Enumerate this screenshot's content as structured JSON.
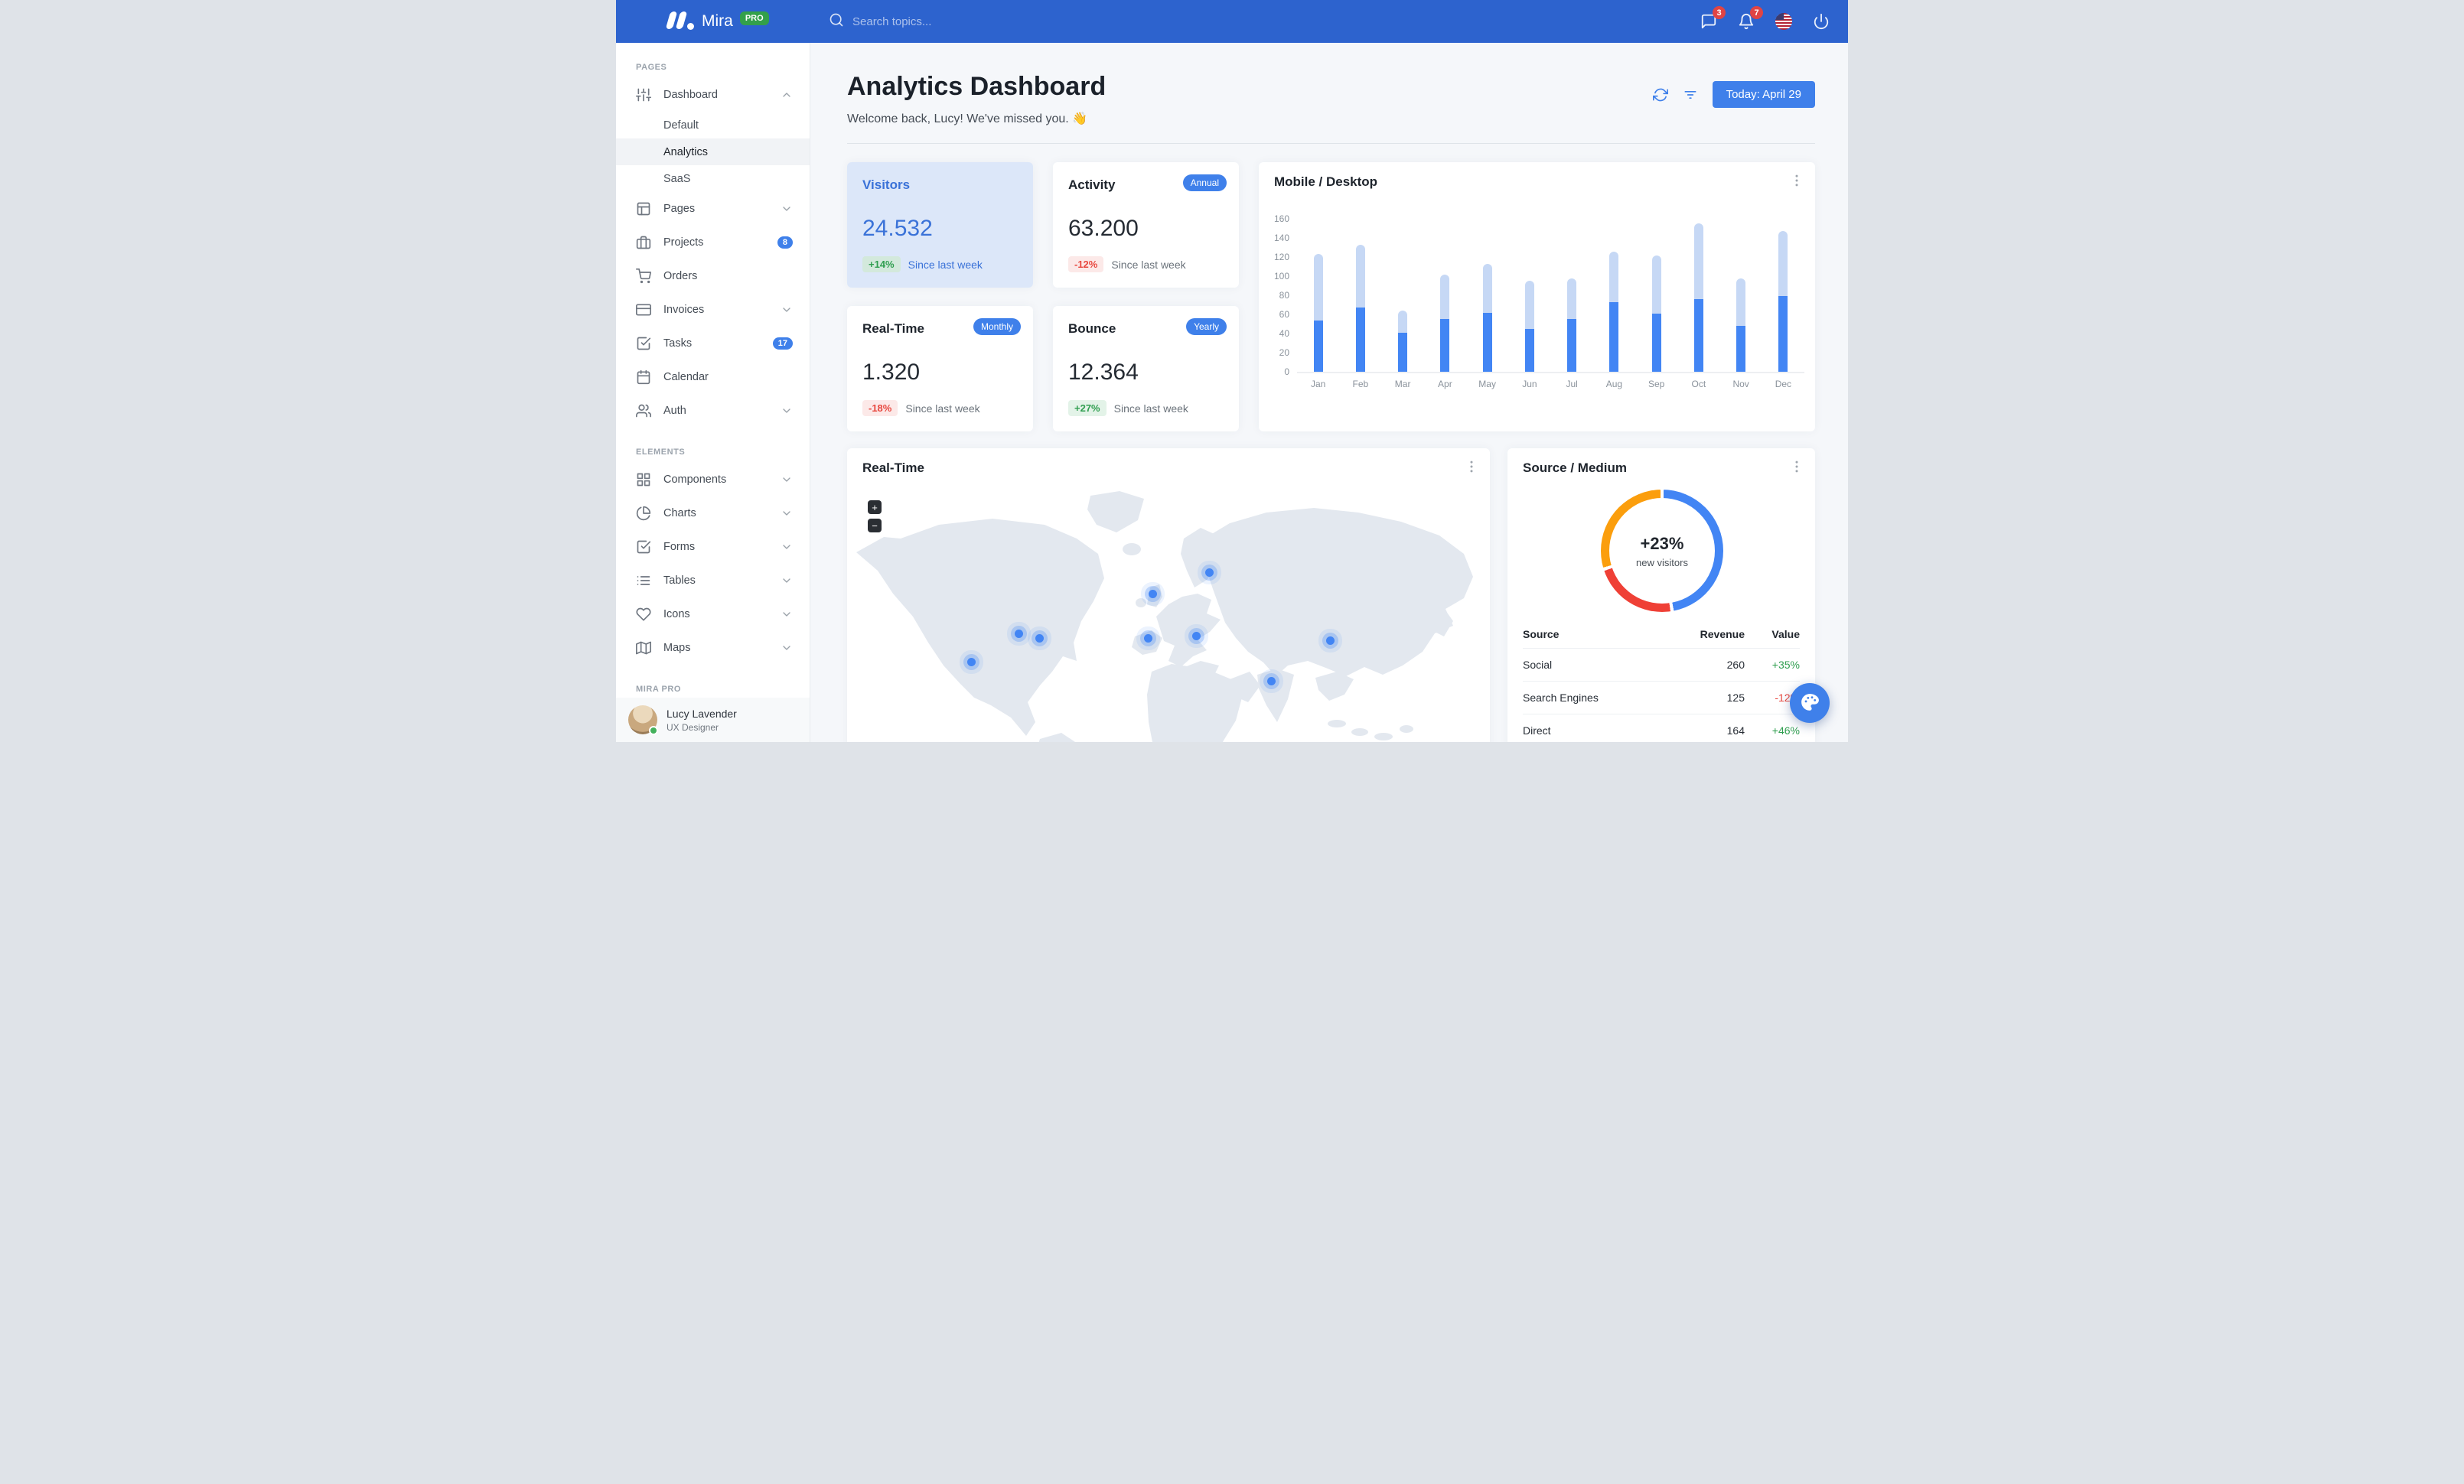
{
  "navbar": {
    "brand": "Mira",
    "brand_badge": "PRO",
    "search_placeholder": "Search topics...",
    "messages_badge": "3",
    "notifications_badge": "7"
  },
  "sidebar": {
    "sections": [
      {
        "heading": "PAGES",
        "items": [
          {
            "label": "Dashboard",
            "icon": "sliders",
            "state": "expanded",
            "children": [
              {
                "label": "Default"
              },
              {
                "label": "Analytics",
                "active": true
              },
              {
                "label": "SaaS"
              }
            ]
          },
          {
            "label": "Pages",
            "icon": "layout",
            "chevron": "down"
          },
          {
            "label": "Projects",
            "icon": "briefcase",
            "badge": "8"
          },
          {
            "label": "Orders",
            "icon": "shopping-cart"
          },
          {
            "label": "Invoices",
            "icon": "credit-card",
            "chevron": "down"
          },
          {
            "label": "Tasks",
            "icon": "check-square",
            "badge": "17"
          },
          {
            "label": "Calendar",
            "icon": "calendar"
          },
          {
            "label": "Auth",
            "icon": "users",
            "chevron": "down"
          }
        ]
      },
      {
        "heading": "ELEMENTS",
        "items": [
          {
            "label": "Components",
            "icon": "grid",
            "chevron": "down"
          },
          {
            "label": "Charts",
            "icon": "pie-chart",
            "chevron": "down"
          },
          {
            "label": "Forms",
            "icon": "check-square",
            "chevron": "down"
          },
          {
            "label": "Tables",
            "icon": "list",
            "chevron": "down"
          },
          {
            "label": "Icons",
            "icon": "heart",
            "chevron": "down"
          },
          {
            "label": "Maps",
            "icon": "map",
            "chevron": "down"
          }
        ]
      },
      {
        "heading": "MIRA PRO",
        "items": []
      }
    ],
    "user": {
      "name": "Lucy Lavender",
      "role": "UX Designer",
      "status": "online"
    }
  },
  "header": {
    "title": "Analytics Dashboard",
    "welcome": "Welcome back, Lucy! We've missed you. 👋",
    "date_button_label": "Today: April 29"
  },
  "stats": [
    {
      "title": "Visitors",
      "value": "24.532",
      "delta": "+14%",
      "trend": "up",
      "caption": "Since last week",
      "highlight": true
    },
    {
      "title": "Activity",
      "value": "63.200",
      "delta": "-12%",
      "trend": "down",
      "caption": "Since last week",
      "tag": "Annual"
    },
    {
      "title": "Real-Time",
      "value": "1.320",
      "delta": "-18%",
      "trend": "down",
      "caption": "Since last week",
      "tag": "Monthly"
    },
    {
      "title": "Bounce",
      "value": "12.364",
      "delta": "+27%",
      "trend": "up",
      "caption": "Since last week",
      "tag": "Yearly"
    }
  ],
  "chart_data": [
    {
      "id": "mobile-desktop",
      "type": "bar",
      "stacked": true,
      "title": "Mobile / Desktop",
      "categories": [
        "Jan",
        "Feb",
        "Mar",
        "Apr",
        "May",
        "Jun",
        "Jul",
        "Aug",
        "Sep",
        "Oct",
        "Nov",
        "Dec"
      ],
      "series": [
        {
          "name": "Mobile",
          "color": "#4285F4",
          "values": [
            54,
            67,
            41,
            55,
            62,
            45,
            55,
            73,
            61,
            76,
            48,
            79
          ]
        },
        {
          "name": "Desktop",
          "color": "#C6D8F5",
          "values": [
            69,
            66,
            23,
            47,
            51,
            50,
            43,
            53,
            61,
            79,
            50,
            68
          ]
        }
      ],
      "ylim": [
        0,
        160
      ],
      "ytick_step": 20,
      "grid": false,
      "legend": "none"
    },
    {
      "id": "source-medium",
      "type": "donut",
      "title": "Source / Medium",
      "labels": [
        "Social",
        "Search Engines",
        "Direct"
      ],
      "values": [
        260,
        125,
        164
      ],
      "colors": [
        "#4285F4",
        "#EF4036",
        "#FB9E0D"
      ],
      "center_text": "+23%",
      "center_subtext": "new visitors",
      "legend": "none"
    }
  ],
  "cards": {
    "mobile_desktop": {
      "title": "Mobile / Desktop"
    },
    "realtime": {
      "title": "Real-Time",
      "zoom_in_label": "+",
      "zoom_out_label": "−",
      "markers": [
        {
          "x": 19.3,
          "y": 55.8
        },
        {
          "x": 26.7,
          "y": 47.0
        },
        {
          "x": 29.9,
          "y": 48.4
        },
        {
          "x": 47.5,
          "y": 35.1
        },
        {
          "x": 46.8,
          "y": 48.4
        },
        {
          "x": 54.4,
          "y": 47.7
        },
        {
          "x": 56.4,
          "y": 28.4
        },
        {
          "x": 66.0,
          "y": 61.4
        },
        {
          "x": 75.2,
          "y": 49.1
        }
      ]
    },
    "source_medium": {
      "title": "Source / Medium",
      "table_headers": [
        "Source",
        "Revenue",
        "Value"
      ],
      "table_rows": [
        {
          "source": "Social",
          "revenue": "260",
          "value": "+35%",
          "trend": "up"
        },
        {
          "source": "Search Engines",
          "revenue": "125",
          "value": "-12%",
          "trend": "down"
        },
        {
          "source": "Direct",
          "revenue": "164",
          "value": "+46%",
          "trend": "up"
        }
      ]
    }
  },
  "colors": {
    "navbar": "#2D63CE",
    "primary": "#3F80EA",
    "bar_mobile": "#4285F4",
    "bar_desktop": "#C6D8F5",
    "positive": "#2F9E4F",
    "negative": "#E8483F",
    "highlight_card_bg": "#DCE7F9",
    "highlight_card_text": "#3A72D8",
    "pro_badge": "#33A04A",
    "icon_badge": "#E04444"
  }
}
